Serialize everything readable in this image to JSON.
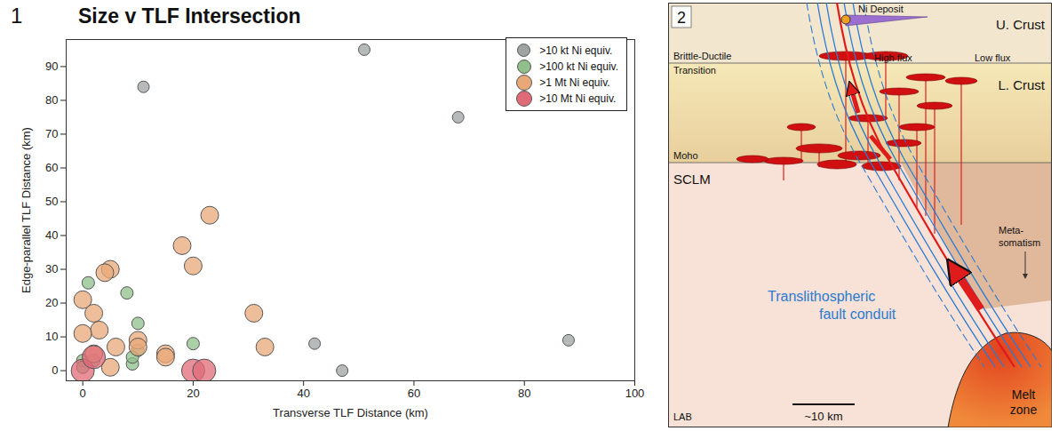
{
  "chart_data": {
    "type": "scatter",
    "panel_label": "1",
    "title": "Size v TLF Intersection",
    "x_label": "Transverse TLF Distance (km)",
    "y_label": "Edge-parallel TLF Distance (km)",
    "xlim": [
      -3,
      100
    ],
    "ylim": [
      -3,
      98
    ],
    "xticks": [
      0,
      20,
      40,
      60,
      80,
      100
    ],
    "yticks": [
      0,
      10,
      20,
      30,
      40,
      50,
      60,
      70,
      80,
      90
    ],
    "grid": false,
    "legend": "top-right",
    "marker": "circle",
    "series": [
      {
        "name": ">10 kt Ni equiv.",
        "color": "#9ea3a3",
        "x": [
          51,
          11,
          68,
          88,
          42,
          47
        ],
        "values": [
          95,
          84,
          75,
          9,
          8,
          0
        ]
      },
      {
        "name": ">100 kt Ni equiv.",
        "color": "#8fbf8a",
        "x": [
          1,
          8,
          10,
          20,
          9,
          10,
          0,
          2,
          9,
          0
        ],
        "values": [
          26,
          23,
          14,
          8,
          2,
          6,
          3,
          3,
          4,
          1
        ]
      },
      {
        "name": ">1 Mt Ni equiv.",
        "color": "#e8a878",
        "x": [
          23,
          18,
          20,
          5,
          4,
          0,
          2,
          3,
          0,
          31,
          33,
          15,
          10,
          10,
          6,
          5,
          2,
          15
        ],
        "values": [
          46,
          37,
          31,
          30,
          29,
          21,
          17,
          12,
          11,
          17,
          7,
          5,
          9,
          7,
          7,
          1,
          5,
          4
        ]
      },
      {
        "name": ">10 Mt Ni equiv.",
        "color": "#e06a78",
        "x": [
          0,
          2,
          20,
          22
        ],
        "values": [
          0,
          4,
          0,
          0
        ]
      }
    ]
  },
  "diagram": {
    "panel_label": "2",
    "ni_deposit": "Ni Deposit",
    "upper_crust": "U. Crust",
    "transition": [
      "Brittle-Ductile",
      "Transition"
    ],
    "high_flux": "High flux",
    "low_flux": "Low flux",
    "lower_crust": "L. Crust",
    "moho": "Moho",
    "sclm": "SCLM",
    "metasomatism": [
      "Meta-",
      "somatism"
    ],
    "fault": [
      "Translithospheric",
      "fault conduit"
    ],
    "melt": [
      "Melt",
      "zone"
    ],
    "lab": "LAB",
    "scale": "~10 km"
  }
}
